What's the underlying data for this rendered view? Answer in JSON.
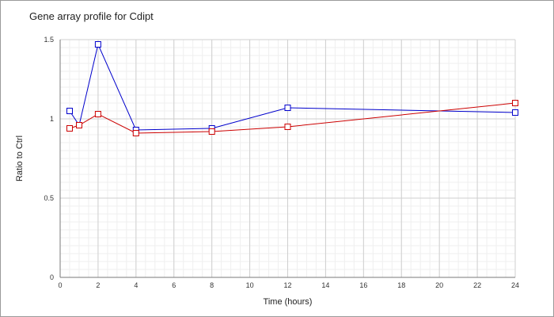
{
  "chart_data": {
    "type": "line",
    "title": "Gene array profile for Cdipt",
    "xlabel": "Time (hours)",
    "ylabel": "Ratio to Ctrl",
    "xlim": [
      0,
      24
    ],
    "ylim": [
      0,
      1.5
    ],
    "x_ticks": [
      0,
      2,
      4,
      6,
      8,
      10,
      12,
      14,
      16,
      18,
      20,
      22,
      24
    ],
    "y_ticks": [
      0,
      0.5,
      1,
      1.5
    ],
    "y_tick_labels": [
      "0",
      "0.5",
      "1",
      "1.5"
    ],
    "grid": true,
    "legend": "none",
    "series": [
      {
        "color": "#0000cc",
        "points": [
          {
            "x": 0.5,
            "y": 1.05
          },
          {
            "x": 1,
            "y": 0.96
          },
          {
            "x": 2,
            "y": 1.47
          },
          {
            "x": 4,
            "y": 0.93
          },
          {
            "x": 8,
            "y": 0.94
          },
          {
            "x": 12,
            "y": 1.07
          },
          {
            "x": 24,
            "y": 1.04
          }
        ]
      },
      {
        "color": "#cc0000",
        "points": [
          {
            "x": 0.5,
            "y": 0.94
          },
          {
            "x": 1,
            "y": 0.96
          },
          {
            "x": 2,
            "y": 1.03
          },
          {
            "x": 4,
            "y": 0.91
          },
          {
            "x": 8,
            "y": 0.92
          },
          {
            "x": 12,
            "y": 0.95
          },
          {
            "x": 24,
            "y": 1.1
          }
        ]
      }
    ]
  }
}
